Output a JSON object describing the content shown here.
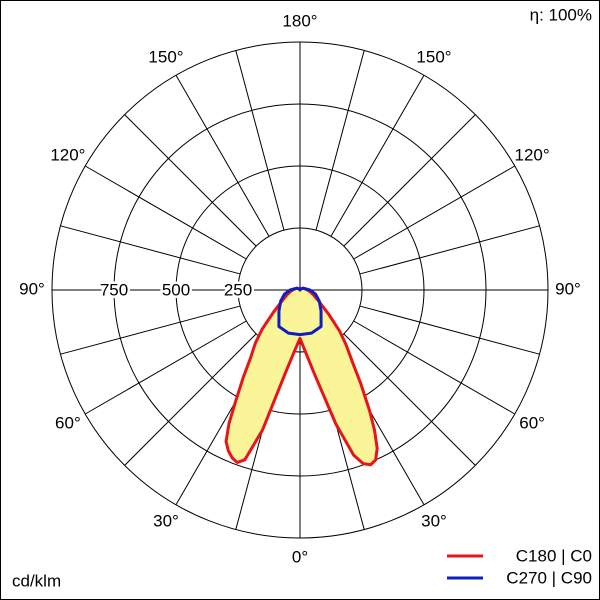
{
  "chart_data": {
    "type": "polar",
    "efficiency": "η: 100%",
    "unit": "cd/klm",
    "rlim": [
      0,
      1000
    ],
    "rticks": [
      250,
      500,
      750,
      1000
    ],
    "rtick_labels": [
      "250",
      "500",
      "750"
    ],
    "angle_grid": [
      0,
      15,
      30,
      45,
      60,
      75,
      90,
      105,
      120,
      135,
      150,
      165,
      180
    ],
    "angle_ticks": [
      {
        "value": 0,
        "label": "0°"
      },
      {
        "value": 30,
        "label": "30°"
      },
      {
        "value": 60,
        "label": "60°"
      },
      {
        "value": 90,
        "label": "90°"
      },
      {
        "value": 120,
        "label": "120°"
      },
      {
        "value": 150,
        "label": "150°"
      },
      {
        "value": 180,
        "label": "180°"
      }
    ],
    "series": [
      {
        "name": "C180 | C0",
        "color": "#e8141a",
        "fill": "#fbf59a",
        "x": [
          -180,
          -150,
          -120,
          -90,
          -80,
          -70,
          -60,
          -50,
          -44,
          -40,
          -36,
          -33,
          -30,
          -28,
          -26,
          -24,
          -22,
          -20,
          -18,
          -15,
          -10,
          -5,
          0,
          5,
          10,
          15,
          18,
          20,
          22,
          24,
          26,
          28,
          30,
          33,
          36,
          40,
          44,
          50,
          60,
          70,
          80,
          90,
          120,
          150,
          180
        ],
        "values": [
          0,
          5,
          15,
          30,
          40,
          55,
          80,
          140,
          220,
          280,
          340,
          420,
          520,
          610,
          680,
          710,
          730,
          740,
          720,
          585,
          340,
          245,
          195,
          250,
          350,
          560,
          700,
          745,
          760,
          750,
          710,
          640,
          560,
          450,
          360,
          290,
          230,
          150,
          85,
          58,
          42,
          30,
          15,
          5,
          0
        ]
      },
      {
        "name": "C270 | C90",
        "color": "#1020c0",
        "x": [
          -180,
          -150,
          -120,
          -90,
          -75,
          -60,
          -45,
          -30,
          -15,
          0,
          15,
          30,
          45,
          60,
          75,
          90,
          120,
          150,
          180
        ],
        "values": [
          0,
          5,
          15,
          40,
          65,
          90,
          120,
          170,
          180,
          180,
          180,
          170,
          120,
          90,
          65,
          40,
          15,
          5,
          0
        ]
      }
    ]
  }
}
